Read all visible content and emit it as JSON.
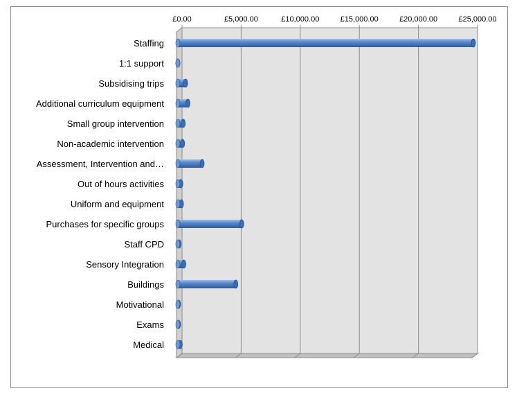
{
  "chart_data": {
    "type": "bar",
    "orientation": "horizontal",
    "style": "3d-cylinder",
    "categories": [
      "Staffing",
      "1:1 support",
      "Subsidising trips",
      "Additional curriculum equipment",
      "Small group intervention",
      "Non-academic intervention",
      "Assessment, Intervention and…",
      "Out of hours activities",
      "Uniform and equipment",
      "Purchases for specific groups",
      "Staff CPD",
      "Sensory Integration",
      "Buildings",
      "Motivational",
      "Exams",
      "Medical"
    ],
    "values": [
      25000,
      0,
      650,
      850,
      450,
      400,
      2050,
      250,
      300,
      5400,
      100,
      500,
      4900,
      50,
      50,
      200
    ],
    "x_ticks": [
      "£0.00",
      "£5,000.00",
      "£10,000.00",
      "£15,000.00",
      "£20,000.00",
      "£25,000.00"
    ],
    "xlim": [
      0,
      25000
    ],
    "x_tick_position": "top",
    "grid": true,
    "legend": "none",
    "colors": {
      "bar": "#4f81bd",
      "plot_wall": "#e3e3e3",
      "grid": "#8c8c8c"
    }
  }
}
